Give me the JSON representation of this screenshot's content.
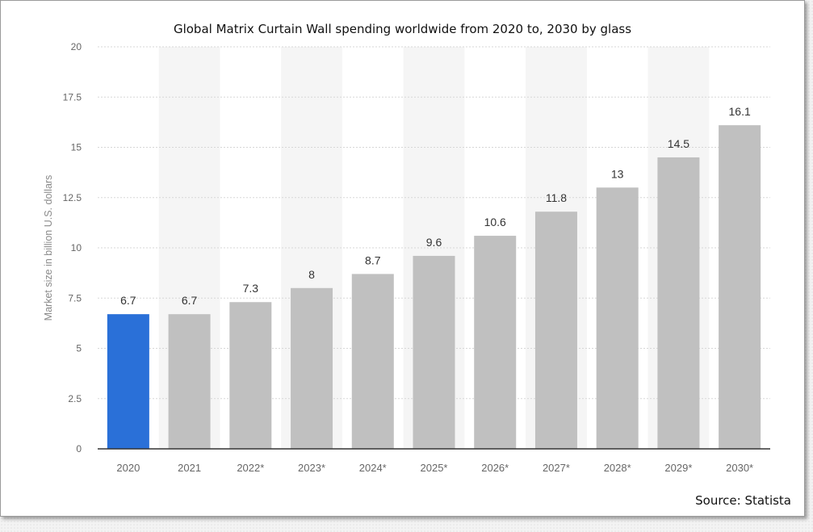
{
  "chart_data": {
    "type": "bar",
    "title": "Global Matrix Curtain Wall spending worldwide from 2020 to, 2030 by glass",
    "ylabel": "Market size in billion U.S. dollars",
    "xlabel": "",
    "categories": [
      "2020",
      "2021",
      "2022*",
      "2023*",
      "2024*",
      "2025*",
      "2026*",
      "2027*",
      "2028*",
      "2029*",
      "2030*"
    ],
    "values": [
      6.7,
      6.7,
      7.3,
      8,
      8.7,
      9.6,
      10.6,
      11.8,
      13,
      14.5,
      16.1
    ],
    "value_labels": [
      "6.7",
      "6.7",
      "7.3",
      "8",
      "8.7",
      "9.6",
      "10.6",
      "11.8",
      "13",
      "14.5",
      "16.1"
    ],
    "ylim": [
      0,
      20
    ],
    "yticks": [
      "0",
      "2.5",
      "5",
      "7.5",
      "10",
      "12.5",
      "15",
      "17.5",
      "20"
    ],
    "grid": true,
    "highlight_index": 0,
    "colors": {
      "highlight": "#2a70d8",
      "bar": "#c0c0c0",
      "band": "#f5f5f5",
      "grid": "#d7d7d7",
      "axis": "#333333"
    }
  },
  "source_text": "Source: Statista"
}
